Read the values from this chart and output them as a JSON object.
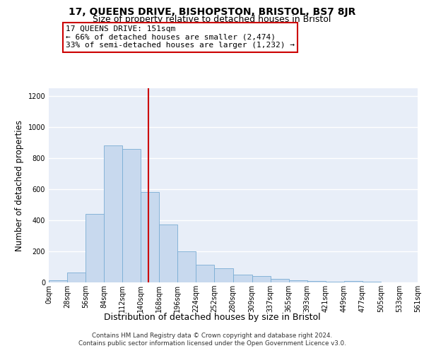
{
  "title_line1": "17, QUEENS DRIVE, BISHOPSTON, BRISTOL, BS7 8JR",
  "title_line2": "Size of property relative to detached houses in Bristol",
  "xlabel": "Distribution of detached houses by size in Bristol",
  "ylabel": "Number of detached properties",
  "footer_line1": "Contains HM Land Registry data © Crown copyright and database right 2024.",
  "footer_line2": "Contains public sector information licensed under the Open Government Licence v3.0.",
  "annotation_title": "17 QUEENS DRIVE: 151sqm",
  "annotation_line2": "← 66% of detached houses are smaller (2,474)",
  "annotation_line3": "33% of semi-detached houses are larger (1,232) →",
  "bin_edges": [
    0,
    28,
    56,
    84,
    112,
    140,
    168,
    196,
    224,
    252,
    280,
    309,
    337,
    365,
    393,
    421,
    449,
    477,
    505,
    533,
    561
  ],
  "bin_labels": [
    "0sqm",
    "28sqm",
    "56sqm",
    "84sqm",
    "112sqm",
    "140sqm",
    "168sqm",
    "196sqm",
    "224sqm",
    "252sqm",
    "280sqm",
    "309sqm",
    "337sqm",
    "365sqm",
    "393sqm",
    "421sqm",
    "449sqm",
    "477sqm",
    "505sqm",
    "533sqm",
    "561sqm"
  ],
  "bar_heights": [
    12,
    65,
    440,
    880,
    860,
    580,
    375,
    200,
    115,
    90,
    50,
    42,
    22,
    15,
    10,
    5,
    8,
    3,
    2,
    2
  ],
  "bar_color": "#c8d9ee",
  "bar_edge_color": "#7aadd4",
  "vline_color": "#cc0000",
  "marker_value": 151,
  "ylim": [
    0,
    1250
  ],
  "yticks": [
    0,
    200,
    400,
    600,
    800,
    1000,
    1200
  ],
  "bg_color": "#e8eef8",
  "grid_color": "#ffffff",
  "annotation_box_edge": "#cc0000",
  "title1_fontsize": 10,
  "title2_fontsize": 9,
  "ylabel_fontsize": 8.5,
  "xlabel_fontsize": 9,
  "tick_fontsize": 7,
  "footer_fontsize": 6.3,
  "annot_fontsize": 8
}
